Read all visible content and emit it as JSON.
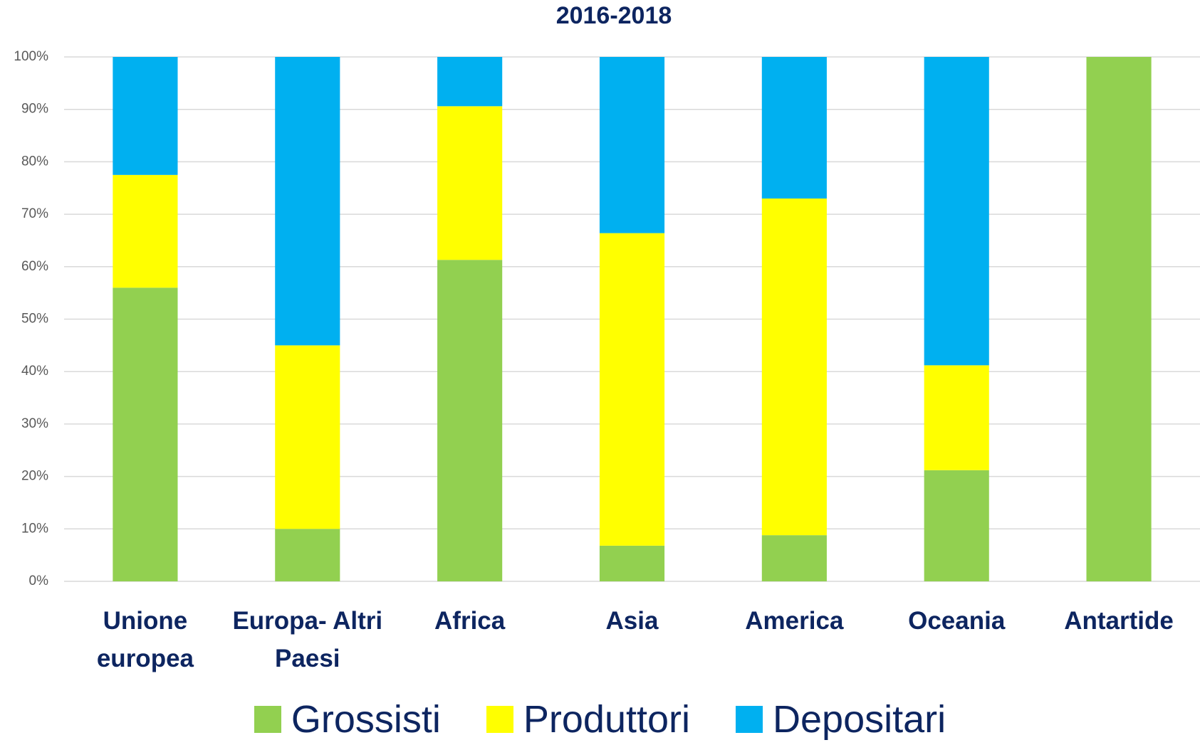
{
  "chart_data": {
    "type": "stacked_bar",
    "title": "2016-2018",
    "categories": [
      "Unione europea",
      "Europa- Altri Paesi",
      "Africa",
      "Asia",
      "America",
      "Oceania",
      "Antartide"
    ],
    "series": [
      {
        "name": "Grossisti",
        "color": "#92d050",
        "values": [
          56,
          10,
          61.3,
          6.8,
          8.8,
          21.2,
          100
        ]
      },
      {
        "name": "Produttori",
        "color": "#ffff00",
        "values": [
          21.5,
          35,
          29.3,
          59.6,
          64.2,
          20,
          0
        ]
      },
      {
        "name": "Depositari",
        "color": "#00b0f0",
        "values": [
          22.5,
          55,
          9.4,
          33.6,
          27,
          58.8,
          0
        ]
      }
    ],
    "ylim": [
      0,
      100
    ],
    "yticks": [
      {
        "value": 0,
        "label": "0%"
      },
      {
        "value": 10,
        "label": "10%"
      },
      {
        "value": 20,
        "label": "20%"
      },
      {
        "value": 30,
        "label": "30%"
      },
      {
        "value": 40,
        "label": "40%"
      },
      {
        "value": 50,
        "label": "50%"
      },
      {
        "value": 60,
        "label": "60%"
      },
      {
        "value": 70,
        "label": "70%"
      },
      {
        "value": 80,
        "label": "80%"
      },
      {
        "value": 90,
        "label": "90%"
      },
      {
        "value": 100,
        "label": "100%"
      }
    ],
    "grid": true
  }
}
